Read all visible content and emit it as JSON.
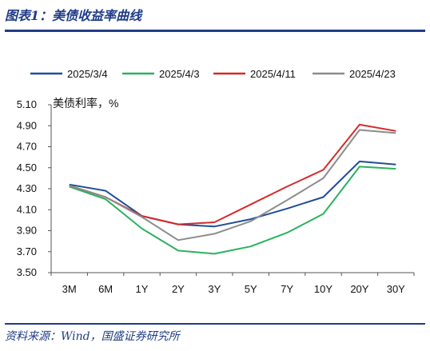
{
  "header": {
    "title": "图表1：美债收益率曲线"
  },
  "footer": {
    "source": "资料来源：Wind，国盛证券研究所"
  },
  "chart_data": {
    "type": "line",
    "title": "图表1：美债收益率曲线",
    "ylabel": "美债利率，%",
    "xlabel": "",
    "categories": [
      "3M",
      "6M",
      "1Y",
      "2Y",
      "3Y",
      "5Y",
      "7Y",
      "10Y",
      "20Y",
      "30Y"
    ],
    "ylim": [
      3.5,
      5.1
    ],
    "yticks": [
      "5.10",
      "4.90",
      "4.70",
      "4.50",
      "4.30",
      "4.10",
      "3.90",
      "3.70",
      "3.50"
    ],
    "legend_position": "top",
    "grid": false,
    "series": [
      {
        "name": "2025/3/4",
        "color": "#1f4e99",
        "values": [
          4.34,
          4.28,
          4.04,
          3.96,
          3.94,
          4.01,
          4.11,
          4.22,
          4.56,
          4.53
        ]
      },
      {
        "name": "2025/4/3",
        "color": "#2ab25e",
        "values": [
          4.32,
          4.2,
          3.92,
          3.71,
          3.68,
          3.75,
          3.88,
          4.06,
          4.51,
          4.49
        ]
      },
      {
        "name": "2025/4/11",
        "color": "#d62a2a",
        "values": [
          4.33,
          4.22,
          4.04,
          3.96,
          3.98,
          4.15,
          4.32,
          4.48,
          4.91,
          4.85
        ]
      },
      {
        "name": "2025/4/23",
        "color": "#8c8c8c",
        "values": [
          4.33,
          4.22,
          4.03,
          3.81,
          3.87,
          3.99,
          4.19,
          4.4,
          4.86,
          4.83
        ]
      }
    ]
  }
}
